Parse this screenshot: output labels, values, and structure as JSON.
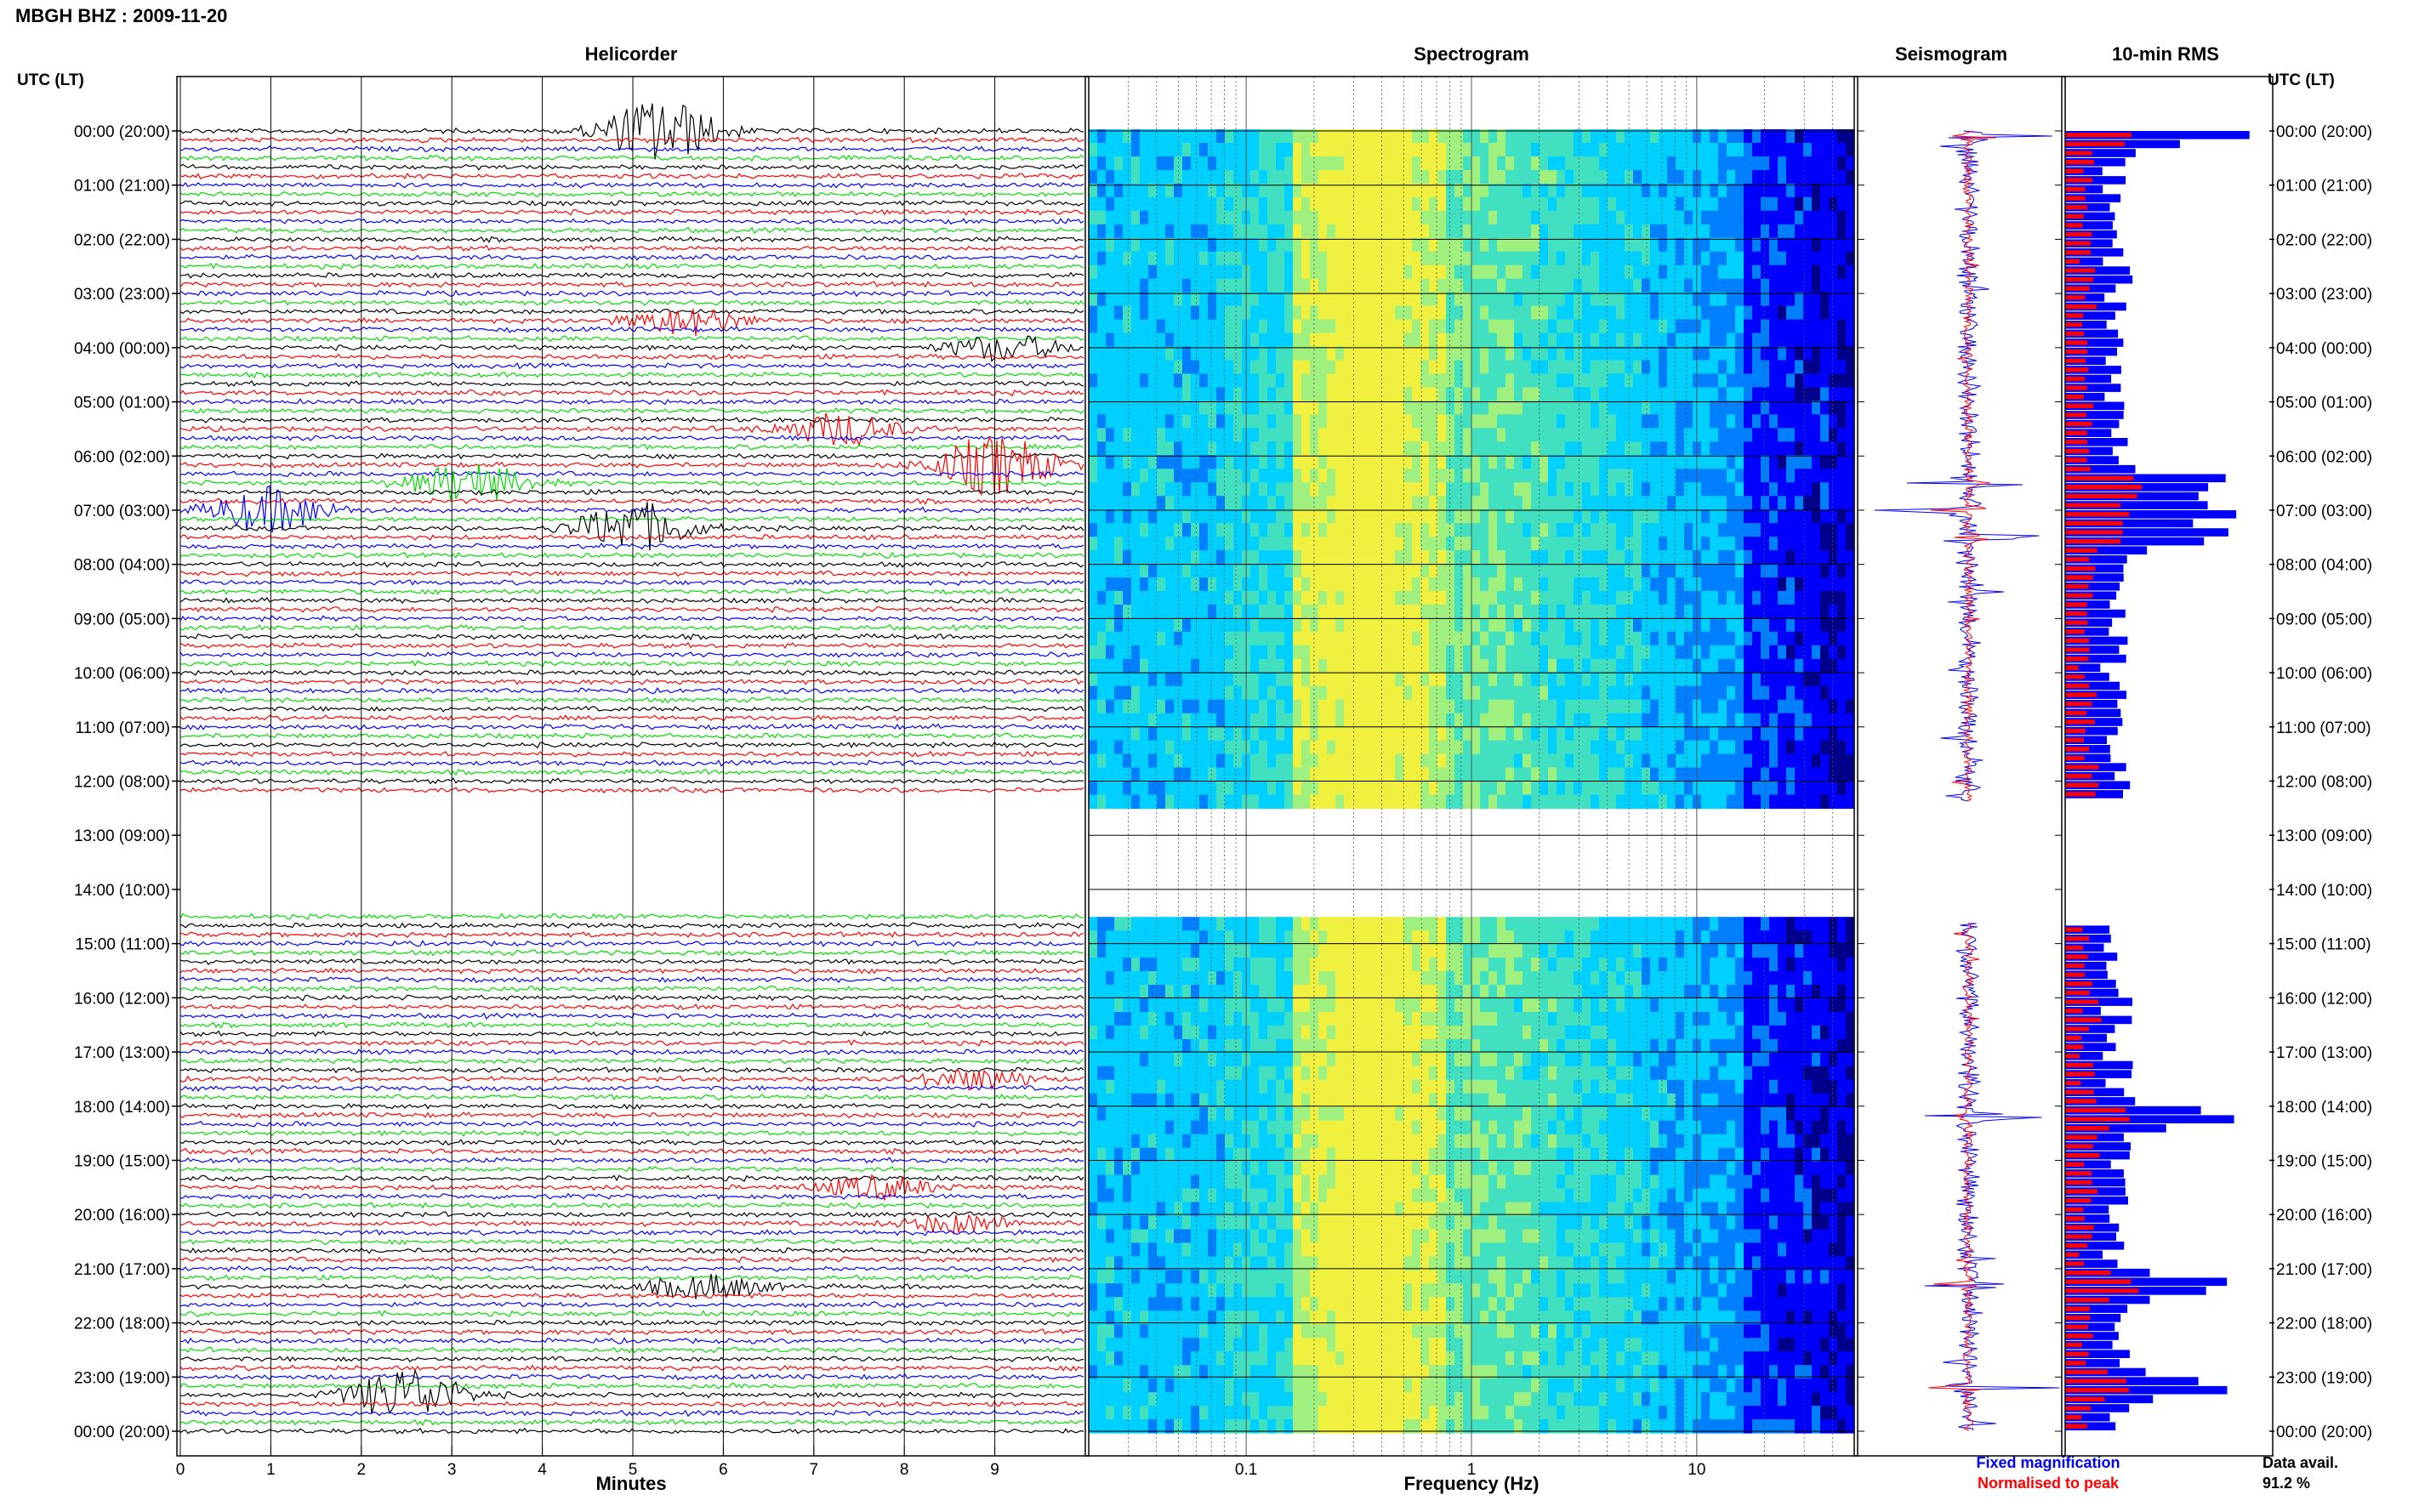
{
  "header": {
    "station_title": "MBGH BHZ : 2009-11-20",
    "utc_label": "UTC (LT)",
    "utc_label_right": "UTC (LT)"
  },
  "chart_data": [
    {
      "type": "line",
      "title": "Helicorder",
      "xlabel": "Minutes",
      "x_ticks": [
        "0",
        "1",
        "2",
        "3",
        "4",
        "5",
        "6",
        "7",
        "8",
        "9"
      ],
      "xlim": [
        0,
        10
      ],
      "row_minutes": 10,
      "hour_labels": [
        "00:00 (20:00)",
        "01:00 (21:00)",
        "02:00 (22:00)",
        "03:00 (23:00)",
        "04:00 (00:00)",
        "05:00 (01:00)",
        "06:00 (02:00)",
        "07:00 (03:00)",
        "08:00 (04:00)",
        "09:00 (05:00)",
        "10:00 (06:00)",
        "11:00 (07:00)",
        "12:00 (08:00)",
        "13:00 (09:00)",
        "14:00 (10:00)",
        "15:00 (11:00)",
        "16:00 (12:00)",
        "17:00 (13:00)",
        "18:00 (14:00)",
        "19:00 (15:00)",
        "20:00 (16:00)",
        "21:00 (17:00)",
        "22:00 (18:00)",
        "23:00 (19:00)",
        "00:00 (20:00)"
      ],
      "trace_colors": [
        "#000000",
        "#ff0000",
        "#0000ff",
        "#00dd00"
      ],
      "gap_hours": [
        12.3,
        14.5
      ],
      "events": [
        {
          "hour": 0.0,
          "minute": 5.3,
          "amp": 3.2
        },
        {
          "hour": 6.2,
          "minute": 9.0,
          "amp": 3.0
        },
        {
          "hour": 6.5,
          "minute": 3.2,
          "amp": 2.0
        },
        {
          "hour": 7.0,
          "minute": 1.0,
          "amp": 2.2
        },
        {
          "hour": 7.3,
          "minute": 5.0,
          "amp": 2.5
        },
        {
          "hour": 5.5,
          "minute": 7.3,
          "amp": 1.6
        },
        {
          "hour": 3.5,
          "minute": 5.6,
          "amp": 1.3
        },
        {
          "hour": 4.0,
          "minute": 9.1,
          "amp": 1.3
        },
        {
          "hour": 23.3,
          "minute": 2.5,
          "amp": 2.6
        },
        {
          "hour": 21.3,
          "minute": 5.8,
          "amp": 1.2
        },
        {
          "hour": 19.5,
          "minute": 7.7,
          "amp": 1.1
        },
        {
          "hour": 17.5,
          "minute": 8.8,
          "amp": 1.0
        },
        {
          "hour": 20.2,
          "minute": 8.6,
          "amp": 0.9
        }
      ]
    },
    {
      "type": "heatmap",
      "title": "Spectrogram",
      "xlabel": "Frequency (Hz)",
      "x_scale": "log",
      "xlim": [
        0.02,
        50
      ],
      "x_tick_labels": [
        "0.1",
        "1",
        "10"
      ],
      "x_tick_values": [
        0.1,
        1,
        10
      ],
      "gap_hours": [
        12.4,
        14.6
      ],
      "colormap": [
        "#00008b",
        "#0000ff",
        "#0080ff",
        "#00d0ff",
        "#40e0c0",
        "#a0f080",
        "#f0f040"
      ]
    },
    {
      "type": "line",
      "title": "Seismogram",
      "gap_hours": [
        12.4,
        14.6
      ],
      "spike_hours": [
        0.1,
        6.5,
        7.0,
        7.5,
        23.2,
        18.2,
        21.3
      ],
      "colors": {
        "fixed": "#0000ff",
        "normalised": "#ff0000"
      }
    },
    {
      "type": "bar",
      "title": "10-min RMS",
      "gap_hours": [
        12.4,
        14.6
      ],
      "bin_minutes": 10,
      "colors": {
        "fixed": "#0000ff",
        "normalised": "#ff0000"
      },
      "legend": [
        "Fixed magnification",
        "Normalised to peak"
      ],
      "legend_position": "bottom-right",
      "data_availability": "91.2 %",
      "data_availability_label": "Data avail."
    }
  ]
}
